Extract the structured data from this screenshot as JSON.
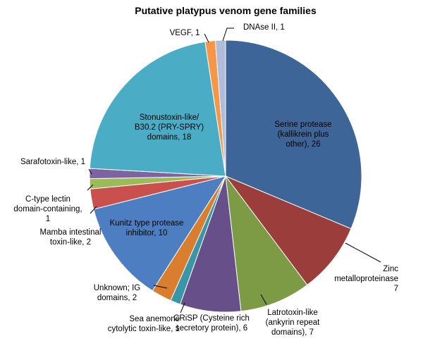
{
  "chart_data": {
    "type": "pie",
    "title": "Putative platypus venom gene families",
    "slices": [
      {
        "lines": [
          "Serine protease",
          "(kallikrein plus",
          "other), 26"
        ],
        "value": 26,
        "color": "#3E6597"
      },
      {
        "lines": [
          "Zinc",
          "metalloproteinase",
          "7"
        ],
        "value": 7,
        "color": "#9B3D3A"
      },
      {
        "lines": [
          "Latrotoxin-like",
          "(ankyrin repeat",
          "domains), 7"
        ],
        "value": 7,
        "color": "#7D9A45"
      },
      {
        "lines": [
          "CRiSP (Cysteine rich",
          "secretory protein), 6"
        ],
        "value": 6,
        "color": "#67508A"
      },
      {
        "lines": [
          "Sea anemone",
          "cytolytic toxin-like, 1"
        ],
        "value": 1,
        "color": "#3B95A8"
      },
      {
        "lines": [
          "Unknown; IG",
          "domains, 2"
        ],
        "value": 2,
        "color": "#D97E2E"
      },
      {
        "lines": [
          "Kunitz type protease",
          "inhibitor, 10"
        ],
        "value": 10,
        "color": "#4E7EC2"
      },
      {
        "lines": [
          "Mamba intestinal",
          "toxin-like, 2"
        ],
        "value": 2,
        "color": "#C9504D"
      },
      {
        "lines": [
          "C-type lectin",
          "domain-containing,",
          "1"
        ],
        "value": 1,
        "color": "#9BBB59"
      },
      {
        "lines": [
          "Sarafotoxin-like, 1"
        ],
        "value": 1,
        "color": "#7E62A1"
      },
      {
        "lines": [
          "Stonustoxin-like/",
          "B30.2 (PRY-SPRY)",
          "domains, 18"
        ],
        "value": 18,
        "color": "#4BACC6"
      },
      {
        "lines": [
          "VEGF, 1"
        ],
        "value": 1,
        "color": "#F79646"
      },
      {
        "lines": [
          "DNAse II, 1"
        ],
        "value": 1,
        "color": "#B0BCD9"
      }
    ]
  }
}
